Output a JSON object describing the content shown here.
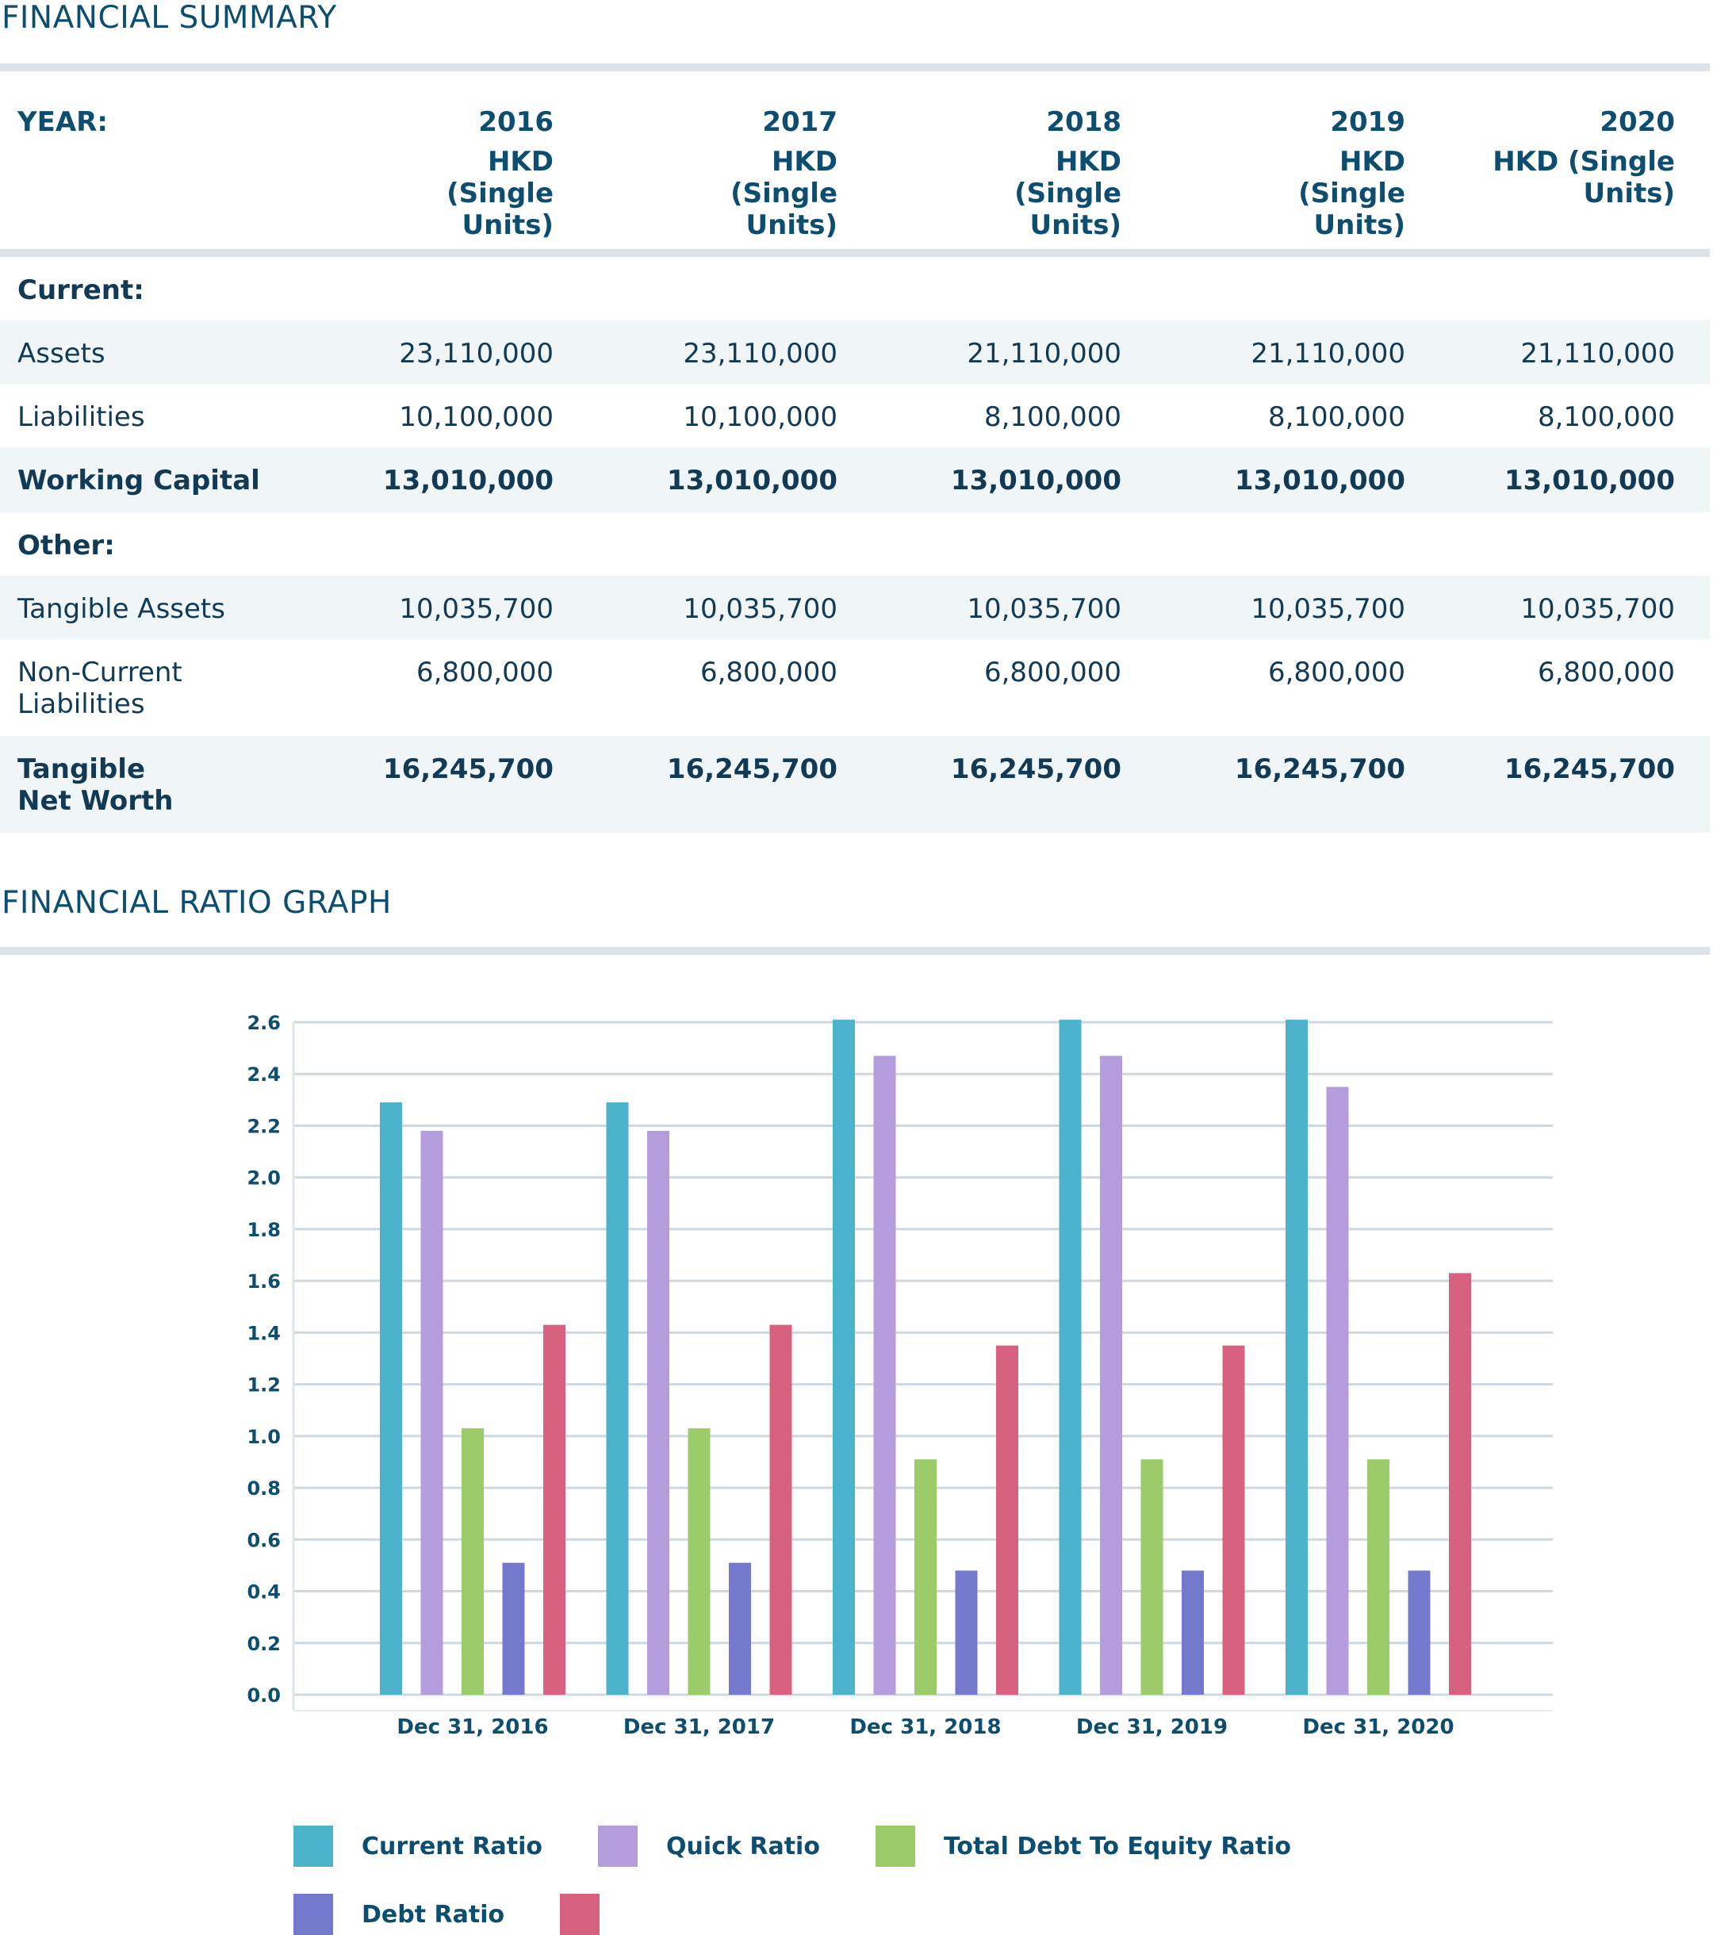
{
  "summary": {
    "title": "FINANCIAL SUMMARY",
    "year_label": "YEAR:",
    "years": [
      "2016",
      "2017",
      "2018",
      "2019",
      "2020"
    ],
    "units": [
      "HKD (Single Units)",
      "HKD (Single Units)",
      "HKD (Single Units)",
      "HKD (Single Units)",
      "HKD (Single Units)"
    ],
    "rows": [
      {
        "label": "Current:",
        "type": "section",
        "values": []
      },
      {
        "label": "Assets",
        "type": "normal",
        "values": [
          "23,110,000",
          "23,110,000",
          "21,110,000",
          "21,110,000",
          "21,110,000"
        ]
      },
      {
        "label": "Liabilities",
        "type": "normal",
        "values": [
          "10,100,000",
          "10,100,000",
          "8,100,000",
          "8,100,000",
          "8,100,000"
        ]
      },
      {
        "label": "Working Capital",
        "type": "total",
        "values": [
          "13,010,000",
          "13,010,000",
          "13,010,000",
          "13,010,000",
          "13,010,000"
        ]
      },
      {
        "label": "Other:",
        "type": "section",
        "values": []
      },
      {
        "label": "Tangible Assets",
        "type": "normal",
        "values": [
          "10,035,700",
          "10,035,700",
          "10,035,700",
          "10,035,700",
          "10,035,700"
        ]
      },
      {
        "label": "Non-Current Liabilities",
        "type": "normal",
        "values": [
          "6,800,000",
          "6,800,000",
          "6,800,000",
          "6,800,000",
          "6,800,000"
        ]
      },
      {
        "label": "Tangible Net Worth",
        "type": "total",
        "values": [
          "16,245,700",
          "16,245,700",
          "16,245,700",
          "16,245,700",
          "16,245,700"
        ]
      }
    ]
  },
  "graph": {
    "title": "FINANCIAL RATIO GRAPH"
  },
  "chart_data": {
    "type": "bar",
    "title": "",
    "xlabel": "",
    "ylabel": "",
    "categories": [
      "Dec 31, 2016",
      "Dec 31, 2017",
      "Dec 31, 2018",
      "Dec 31, 2019",
      "Dec 31, 2020"
    ],
    "ylim": [
      0,
      2.6
    ],
    "yticks": [
      "0.0",
      "0.2",
      "0.4",
      "0.6",
      "0.8",
      "1.0",
      "1.2",
      "1.4",
      "1.6",
      "1.8",
      "2.0",
      "2.2",
      "2.4",
      "2.6"
    ],
    "grid": true,
    "legend_position": "bottom",
    "series": [
      {
        "name": "Current Ratio",
        "color": "#4db3cd",
        "values": [
          2.29,
          2.29,
          2.61,
          2.61,
          2.61
        ]
      },
      {
        "name": "Quick Ratio",
        "color": "#b49ddc",
        "values": [
          2.18,
          2.18,
          2.47,
          2.47,
          2.35
        ]
      },
      {
        "name": "Total Debt To Equity Ratio",
        "color": "#9ccc6a",
        "values": [
          1.03,
          1.03,
          0.91,
          0.91,
          0.91
        ]
      },
      {
        "name": "Debt Ratio",
        "color": "#7479ce",
        "values": [
          0.51,
          0.51,
          0.48,
          0.48,
          0.48
        ]
      },
      {
        "name": "",
        "color": "#d8617f",
        "values": [
          1.43,
          1.43,
          1.35,
          1.35,
          1.63
        ]
      }
    ]
  }
}
